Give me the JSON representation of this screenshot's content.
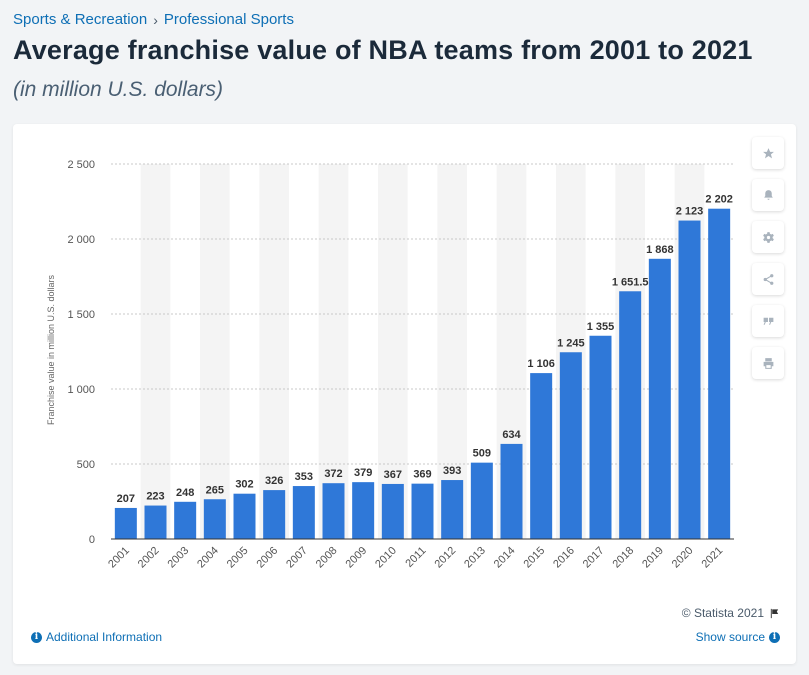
{
  "breadcrumb": {
    "items": [
      "Sports & Recreation",
      "Professional Sports"
    ],
    "separator": "›"
  },
  "title": "Average franchise value of NBA teams from 2001 to 2021",
  "subtitle": "(in million U.S. dollars)",
  "toolbar": {
    "icons": [
      "star-icon",
      "bell-icon",
      "gear-icon",
      "share-icon",
      "quote-icon",
      "print-icon"
    ]
  },
  "footer": {
    "copyright": "© Statista 2021",
    "additional_info": "Additional Information",
    "show_source": "Show source"
  },
  "colors": {
    "bar": "#2f78d8",
    "band": "#f4f4f4",
    "link": "#0e6fb5"
  },
  "chart_data": {
    "type": "bar",
    "categories": [
      "2001",
      "2002",
      "2003",
      "2004",
      "2005",
      "2006",
      "2007",
      "2008",
      "2009",
      "2010",
      "2011",
      "2012",
      "2013",
      "2014",
      "2015",
      "2016",
      "2017",
      "2018",
      "2019",
      "2020",
      "2021"
    ],
    "values": [
      207,
      223,
      248,
      265,
      302,
      326,
      353,
      372,
      379,
      367,
      369,
      393,
      509,
      634,
      1106,
      1245,
      1355,
      1651.5,
      1868,
      2123,
      2202
    ],
    "value_labels": [
      "207",
      "223",
      "248",
      "265",
      "302",
      "326",
      "353",
      "372",
      "379",
      "367",
      "369",
      "393",
      "509",
      "634",
      "1 106",
      "1 245",
      "1 355",
      "1 651.5",
      "1 868",
      "2 123",
      "2 202"
    ],
    "ylabel": "Franchise value in million U.S. dollars",
    "xlabel": "",
    "ylim": [
      0,
      2500
    ],
    "yticks": [
      0,
      500,
      1000,
      1500,
      2000,
      2500
    ],
    "ytick_labels": [
      "0",
      "500",
      "1 000",
      "1 500",
      "2 000",
      "2 500"
    ],
    "grid": true
  }
}
